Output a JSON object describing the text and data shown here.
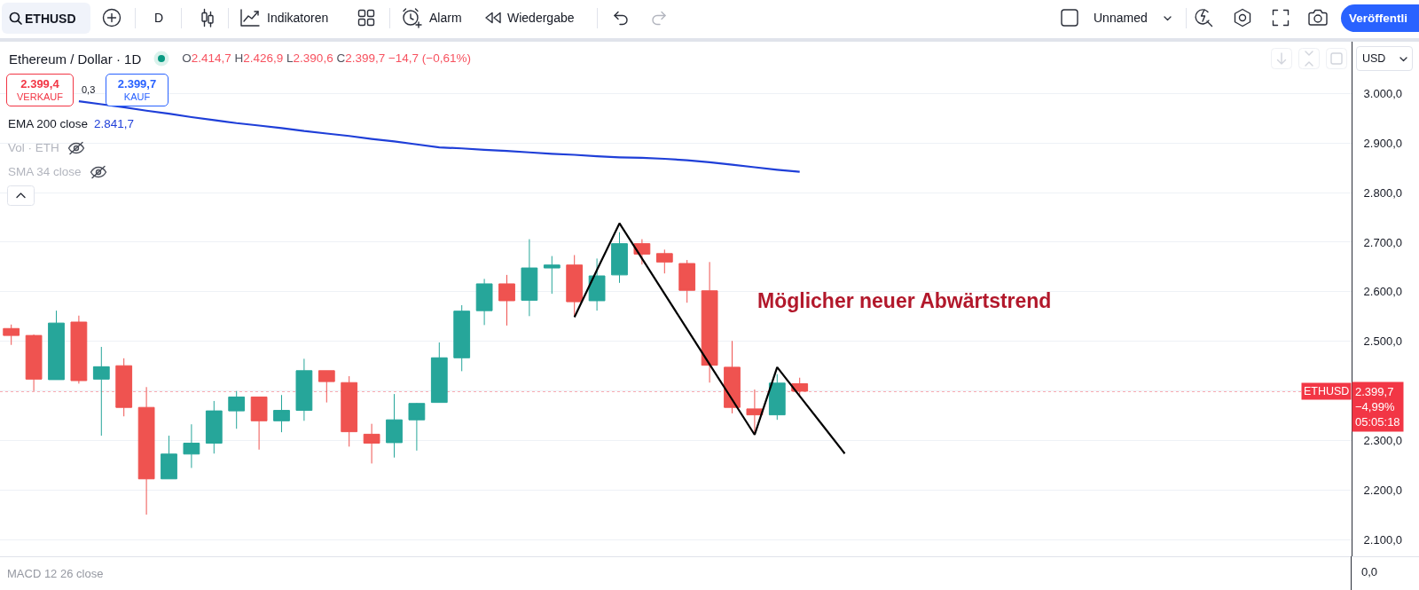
{
  "chart_data": [
    {
      "type": "candlestick",
      "title": "Ethereum / Dollar · 1D",
      "categories": [
        null,
        null,
        null,
        null,
        null,
        null,
        null,
        null,
        null,
        null,
        null,
        null,
        null,
        null,
        null,
        null,
        null,
        null,
        null,
        null,
        null,
        null,
        null,
        null,
        null,
        null,
        null,
        null,
        null,
        null,
        null,
        null,
        null,
        null,
        null,
        null,
        null,
        null,
        null,
        null,
        null,
        null,
        null,
        null,
        null,
        null,
        null,
        null,
        null,
        null,
        null,
        null,
        null,
        null,
        null,
        null,
        null,
        null,
        null,
        null
      ],
      "ohlc": [
        [
          2526,
          2534,
          2493,
          2512
        ],
        [
          2512,
          2514,
          2400,
          2424
        ],
        [
          2423,
          2562,
          2423,
          2537
        ],
        [
          2539,
          2552,
          2415,
          2421
        ],
        [
          2424,
          2489,
          2310,
          2449
        ],
        [
          2451,
          2466,
          2349,
          2367
        ],
        [
          2367,
          2408,
          2151,
          2223
        ],
        [
          2223,
          2310,
          2223,
          2273
        ],
        [
          2273,
          2333,
          2245,
          2295
        ],
        [
          2295,
          2380,
          2274,
          2360
        ],
        [
          2360,
          2400,
          2324,
          2388
        ],
        [
          2388,
          2388,
          2282,
          2340
        ],
        [
          2340,
          2392,
          2317,
          2361
        ],
        [
          2361,
          2465,
          2340,
          2441
        ],
        [
          2441,
          2441,
          2377,
          2419
        ],
        [
          2417,
          2430,
          2288,
          2318
        ],
        [
          2313,
          2334,
          2254,
          2295
        ],
        [
          2296,
          2394,
          2266,
          2342
        ],
        [
          2342,
          2376,
          2280,
          2375
        ],
        [
          2377,
          2498,
          2377,
          2467
        ],
        [
          2467,
          2573,
          2440,
          2561
        ],
        [
          2562,
          2626,
          2533,
          2616
        ],
        [
          2616,
          2634,
          2532,
          2582
        ],
        [
          2583,
          2706,
          2551,
          2648
        ],
        [
          2648,
          2672,
          2596,
          2654
        ],
        [
          2654,
          2674,
          2551,
          2580
        ],
        [
          2582,
          2667,
          2562,
          2632
        ],
        [
          2634,
          2720,
          2618,
          2697
        ],
        [
          2697,
          2706,
          2655,
          2676
        ],
        [
          2677,
          2685,
          2637,
          2660
        ],
        [
          2657,
          2664,
          2578,
          2603
        ],
        [
          2602,
          2660,
          2417,
          2452
        ],
        [
          2448,
          2501,
          2355,
          2367
        ],
        [
          2364,
          2403,
          2315,
          2352
        ],
        [
          2352,
          2434,
          2342,
          2416
        ],
        [
          2414.7,
          2426.9,
          2390.6,
          2399.7
        ],
        null,
        null,
        null,
        null,
        null,
        null,
        null,
        null,
        null,
        null,
        null,
        null,
        null,
        null,
        null,
        null,
        null,
        null,
        null,
        null,
        null,
        null,
        null,
        null
      ],
      "colors": [
        "#ef5350",
        "#ef5350",
        "#26a69a",
        "#ef5350",
        "#26a69a",
        "#ef5350",
        "#ef5350",
        "#26a69a",
        "#26a69a",
        "#26a69a",
        "#26a69a",
        "#ef5350",
        "#26a69a",
        "#26a69a",
        "#ef5350",
        "#ef5350",
        "#ef5350",
        "#26a69a",
        "#26a69a",
        "#26a69a",
        "#26a69a",
        "#26a69a",
        "#ef5350",
        "#26a69a",
        "#26a69a",
        "#ef5350",
        "#26a69a",
        "#26a69a",
        "#ef5350",
        "#ef5350",
        "#ef5350",
        "#ef5350",
        "#ef5350",
        "#ef5350",
        "#26a69a",
        "#ef5350",
        null,
        null,
        null,
        null,
        null,
        null,
        null,
        null,
        null,
        null,
        null,
        null,
        null,
        null,
        null,
        null,
        null,
        null,
        null,
        null,
        null,
        null,
        null,
        null
      ],
      "series": [
        {
          "name": "EMA 200 close",
          "type": "line",
          "color": "#1f3fd8",
          "values": [
            null,
            null,
            null,
            2984,
            2978,
            2972,
            2965,
            2959,
            2952,
            2946,
            2940,
            2935,
            2930,
            2924,
            2919,
            2914,
            2908,
            2903,
            2897,
            2891,
            2889,
            2886,
            2884,
            2881,
            2878,
            2876,
            2873,
            2871,
            2870,
            2868,
            2865,
            2861,
            2856,
            2851,
            2846,
            2842,
            null,
            null,
            null,
            null,
            null,
            null,
            null,
            null,
            null,
            null,
            null,
            null,
            null,
            null,
            null,
            null,
            null,
            null,
            null,
            null,
            null,
            null,
            null,
            null
          ]
        },
        {
          "type": "line",
          "color": "#000000",
          "values": [
            null,
            null,
            null,
            null,
            null,
            null,
            null,
            null,
            null,
            null,
            null,
            null,
            null,
            null,
            null,
            null,
            null,
            null,
            null,
            null,
            null,
            null,
            null,
            null,
            null,
            2549,
            2644,
            2738,
            2667,
            2596,
            2525,
            2454,
            2383,
            2312,
            2448,
            2390,
            2332,
            2274,
            null,
            null,
            null,
            null,
            null,
            null,
            null,
            null,
            null,
            null,
            null,
            null,
            null,
            null,
            null,
            null,
            null,
            null,
            null,
            null,
            null,
            null
          ]
        }
      ],
      "ylim": [
        2067,
        3104
      ],
      "yticks": [
        {
          "value": 2100,
          "label": "2.100,0"
        },
        {
          "value": 2200,
          "label": "2.200,0"
        },
        {
          "value": 2300,
          "label": "2.300,0"
        },
        {
          "value": 2400,
          "label": null
        },
        {
          "value": 2500,
          "label": "2.500,0"
        },
        {
          "value": 2600,
          "label": "2.600,0"
        },
        {
          "value": 2700,
          "label": "2.700,0"
        },
        {
          "value": 2800,
          "label": "2.800,0"
        },
        {
          "value": 2900,
          "label": "2.900,0"
        },
        {
          "value": 3000,
          "label": "3.000,0"
        }
      ],
      "ref_lines": [
        {
          "axis": "y",
          "value": 2399.7,
          "label": "ETHUSD",
          "color": "#f23645",
          "line_style": "dotted"
        }
      ],
      "annotations": [
        "O2.414,7 H2.426,9 L2.390,6 C2.399,7 −14,7 (−0,61%)",
        "2.399,4",
        "VERKAUF",
        "0,3",
        "2.399,7",
        "KAUF",
        "Vol · ETH",
        "SMA 34 close",
        "Möglicher neuer Abwärtstrend",
        "−4,99%",
        "05:05:18",
        "USD",
        "ETHUSD",
        "D",
        "Indikatoren",
        "Alarm",
        "Wiedergabe",
        "Unnamed",
        "Veröffentli",
        "2.841,7"
      ],
      "grid": "y",
      "legend": "top left",
      "tick_labels": "y"
    },
    {
      "type": "other",
      "title": "MACD 12 26 close",
      "annotations": [
        "0,0"
      ]
    }
  ]
}
